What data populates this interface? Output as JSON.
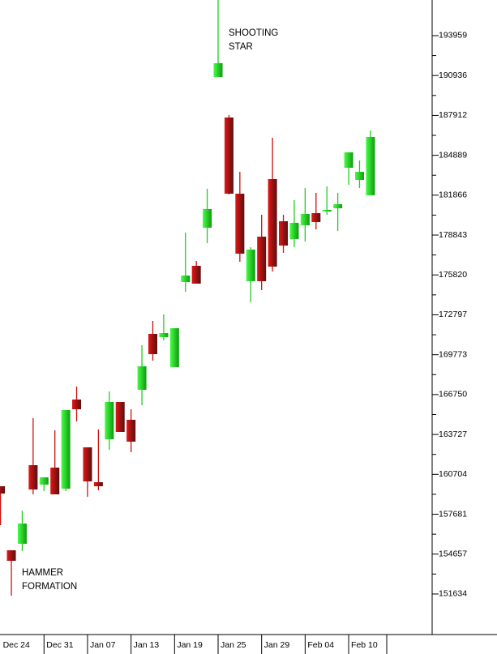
{
  "chart_data": {
    "type": "candlestick",
    "categories": [
      "Dec 24",
      null,
      null,
      null,
      "Dec 31",
      null,
      null,
      null,
      "Jan 07",
      null,
      null,
      null,
      "Jan 13",
      null,
      null,
      null,
      "Jan 19",
      null,
      null,
      null,
      "Jan 25",
      null,
      null,
      null,
      "Jan 29",
      null,
      null,
      null,
      "Feb 04",
      null,
      null,
      null,
      "Feb 10",
      null,
      null
    ],
    "open": [
      159802,
      154949,
      155440,
      161399,
      159925,
      161215,
      159618,
      166375,
      162751,
      160109,
      163365,
      166191,
      164839,
      167112,
      171351,
      171105,
      168832,
      175282,
      176511,
      179398,
      190824,
      187753,
      181978,
      175344,
      178722,
      183084,
      179890,
      178538,
      179582,
      180504,
      180627,
      180872,
      183944,
      183023,
      181855
    ],
    "high": [
      159802,
      154949,
      157959,
      164962,
      160478,
      164041,
      165576,
      167358,
      162751,
      164102,
      166989,
      166191,
      165638,
      170491,
      172334,
      172825,
      171781,
      179030,
      176880,
      182347,
      196900,
      187937,
      183637,
      177924,
      180381,
      186217,
      180381,
      181487,
      182408,
      182040,
      182531,
      182040,
      185111,
      184497,
      186770
    ],
    "low": [
      156853,
      151509,
      154888,
      159188,
      159433,
      159188,
      159433,
      164716,
      159003,
      159495,
      162566,
      163918,
      162382,
      165945,
      169324,
      170859,
      168832,
      174545,
      175159,
      178231,
      190824,
      181917,
      176818,
      173747,
      174668,
      176081,
      177494,
      177924,
      178354,
      179275,
      180381,
      179152,
      182654,
      182408,
      181855
    ],
    "close": [
      159249,
      154150,
      156976,
      159556,
      160478,
      159188,
      165576,
      165638,
      160171,
      159802,
      166191,
      163918,
      163181,
      168894,
      169815,
      171412,
      171781,
      175774,
      175159,
      180811,
      191868,
      181978,
      177432,
      177740,
      175344,
      176450,
      178047,
      179767,
      180442,
      179828,
      180750,
      181180,
      185111,
      183637,
      186278
    ],
    "up_color": "#22cc22",
    "down_color": "#cc1111",
    "ylim": [
      148560,
      196660
    ],
    "yticks": [
      193959,
      190936,
      187912,
      184889,
      181866,
      178843,
      175820,
      172797,
      169773,
      166750,
      163727,
      160704,
      157681,
      154657,
      151634
    ],
    "annotations": [
      {
        "lines": [
          "SHOOTING",
          "STAR"
        ]
      },
      {
        "lines": [
          "HAMMER",
          "FORMATION"
        ]
      }
    ],
    "annotation_color": "#2233dd"
  }
}
